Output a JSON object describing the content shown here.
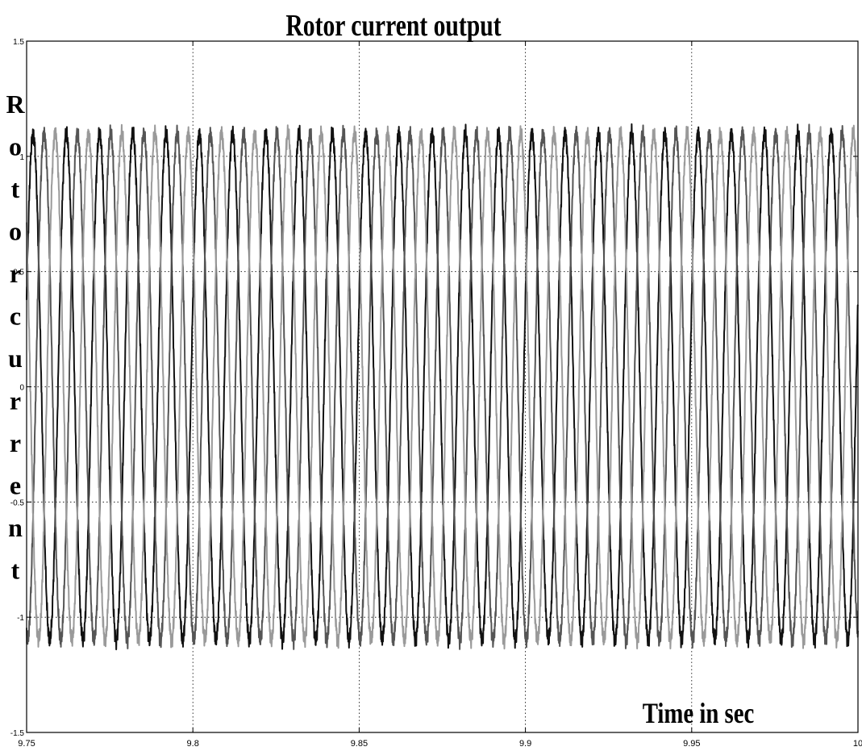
{
  "chart_data": {
    "type": "line",
    "title": "Rotor current output",
    "xlabel": "Time in sec",
    "ylabel": "Rotor current",
    "xlim": [
      9.75,
      10
    ],
    "ylim": [
      -1.5,
      1.5
    ],
    "xticks": [
      9.75,
      9.8,
      9.85,
      9.9,
      9.95,
      10
    ],
    "xtick_labels": [
      "9.75",
      "9.8",
      "9.85",
      "9.9",
      "9.95",
      "10"
    ],
    "yticks": [
      -1.5,
      -1,
      -0.5,
      0,
      0.5,
      1,
      1.5
    ],
    "ytick_labels": [
      "-1.5",
      "-1",
      "-0.5",
      "0",
      "0.5",
      "1",
      "1.5"
    ],
    "grid": true,
    "grid_style": "dotted",
    "series": [
      {
        "amplitude": 1.1,
        "frequency_hz": 100,
        "phase_deg": 0,
        "color": "#111111",
        "ripple": 0.025
      },
      {
        "amplitude": 1.1,
        "frequency_hz": 100,
        "phase_deg": -120,
        "color": "#555555",
        "ripple": 0.025
      },
      {
        "amplitude": 1.1,
        "frequency_hz": 100,
        "phase_deg": 120,
        "color": "#9a9a9a",
        "ripple": 0.025
      }
    ]
  }
}
